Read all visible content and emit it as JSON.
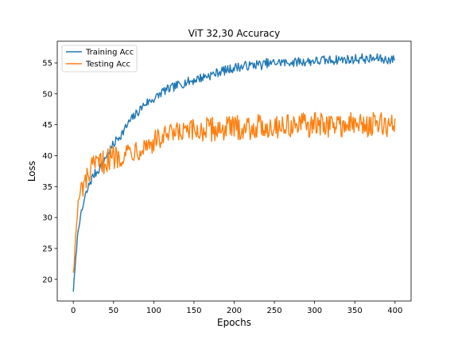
{
  "chart_data": {
    "type": "line",
    "title": "ViT 32,30 Accuracy",
    "xlabel": "Epochs",
    "ylabel": "Loss",
    "xlim": [
      -20,
      420
    ],
    "ylim": [
      16.5,
      58.5
    ],
    "xticks": [
      0,
      50,
      100,
      150,
      200,
      250,
      300,
      350,
      400
    ],
    "yticks": [
      20,
      25,
      30,
      35,
      40,
      45,
      50,
      55
    ],
    "grid": false,
    "legend": "top-left",
    "colors": {
      "train": "#1f77b4",
      "test": "#ff7f0e"
    },
    "series": [
      {
        "name": "Training Acc",
        "x": [
          0,
          2,
          4,
          6,
          8,
          10,
          12,
          15,
          18,
          20,
          25,
          30,
          35,
          40,
          45,
          50,
          55,
          60,
          65,
          70,
          75,
          80,
          85,
          90,
          95,
          100,
          105,
          110,
          115,
          120,
          125,
          130,
          135,
          140,
          145,
          150,
          155,
          160,
          165,
          170,
          175,
          180,
          185,
          190,
          195,
          200,
          205,
          210,
          215,
          220,
          225,
          230,
          235,
          240,
          245,
          250,
          255,
          260,
          265,
          270,
          275,
          280,
          285,
          290,
          295,
          300,
          305,
          310,
          315,
          320,
          325,
          330,
          335,
          340,
          345,
          350,
          355,
          360,
          365,
          370,
          375,
          380,
          385,
          390,
          395,
          400
        ],
        "values": [
          18.2,
          21.5,
          25.0,
          28.0,
          29.5,
          30.5,
          31.8,
          33.5,
          34.5,
          35.5,
          36.8,
          37.5,
          38.5,
          39.8,
          40.8,
          41.8,
          42.8,
          43.5,
          44.5,
          45.5,
          46.3,
          47.0,
          47.8,
          48.5,
          48.8,
          49.2,
          49.6,
          50.3,
          50.6,
          50.8,
          51.1,
          51.4,
          51.6,
          51.9,
          52.0,
          52.2,
          52.5,
          52.6,
          52.9,
          53.0,
          53.2,
          53.5,
          53.7,
          53.8,
          54.0,
          54.2,
          54.4,
          54.3,
          54.6,
          54.5,
          54.7,
          54.8,
          54.6,
          55.0,
          54.8,
          55.1,
          55.0,
          55.2,
          54.9,
          55.2,
          55.0,
          55.3,
          55.1,
          55.3,
          55.2,
          55.4,
          55.2,
          55.5,
          55.3,
          55.5,
          55.4,
          55.6,
          55.5,
          55.6,
          55.4,
          55.7,
          55.6,
          55.8,
          55.5,
          55.7,
          55.6,
          55.8,
          55.5,
          55.6,
          55.4,
          55.8
        ],
        "noise": 0.75
      },
      {
        "name": "Testing Acc",
        "x": [
          0,
          2,
          4,
          6,
          8,
          10,
          12,
          15,
          18,
          20,
          25,
          30,
          35,
          40,
          45,
          50,
          55,
          60,
          65,
          70,
          75,
          80,
          85,
          90,
          95,
          100,
          105,
          110,
          115,
          120,
          125,
          130,
          135,
          140,
          145,
          150,
          155,
          160,
          165,
          170,
          175,
          180,
          185,
          190,
          195,
          200,
          210,
          220,
          230,
          240,
          250,
          260,
          270,
          280,
          290,
          300,
          310,
          320,
          330,
          340,
          350,
          360,
          370,
          380,
          390,
          400
        ],
        "values": [
          21.5,
          24.5,
          29.0,
          32.0,
          33.5,
          34.5,
          35.0,
          35.5,
          36.5,
          37.2,
          38.0,
          38.5,
          38.8,
          39.2,
          39.5,
          39.8,
          40.0,
          40.2,
          40.5,
          40.8,
          41.0,
          41.2,
          41.5,
          41.8,
          42.0,
          42.2,
          42.5,
          42.8,
          43.0,
          43.2,
          43.3,
          43.5,
          43.6,
          43.7,
          43.8,
          43.9,
          44.0,
          44.1,
          44.2,
          44.2,
          44.3,
          44.3,
          44.4,
          44.4,
          44.5,
          44.5,
          44.6,
          44.6,
          44.7,
          44.7,
          44.8,
          44.8,
          44.9,
          44.9,
          44.9,
          45.0,
          45.0,
          45.0,
          45.0,
          45.0,
          45.0,
          45.0,
          45.0,
          45.0,
          44.9,
          44.9
        ],
        "noise": 2.0
      }
    ]
  }
}
